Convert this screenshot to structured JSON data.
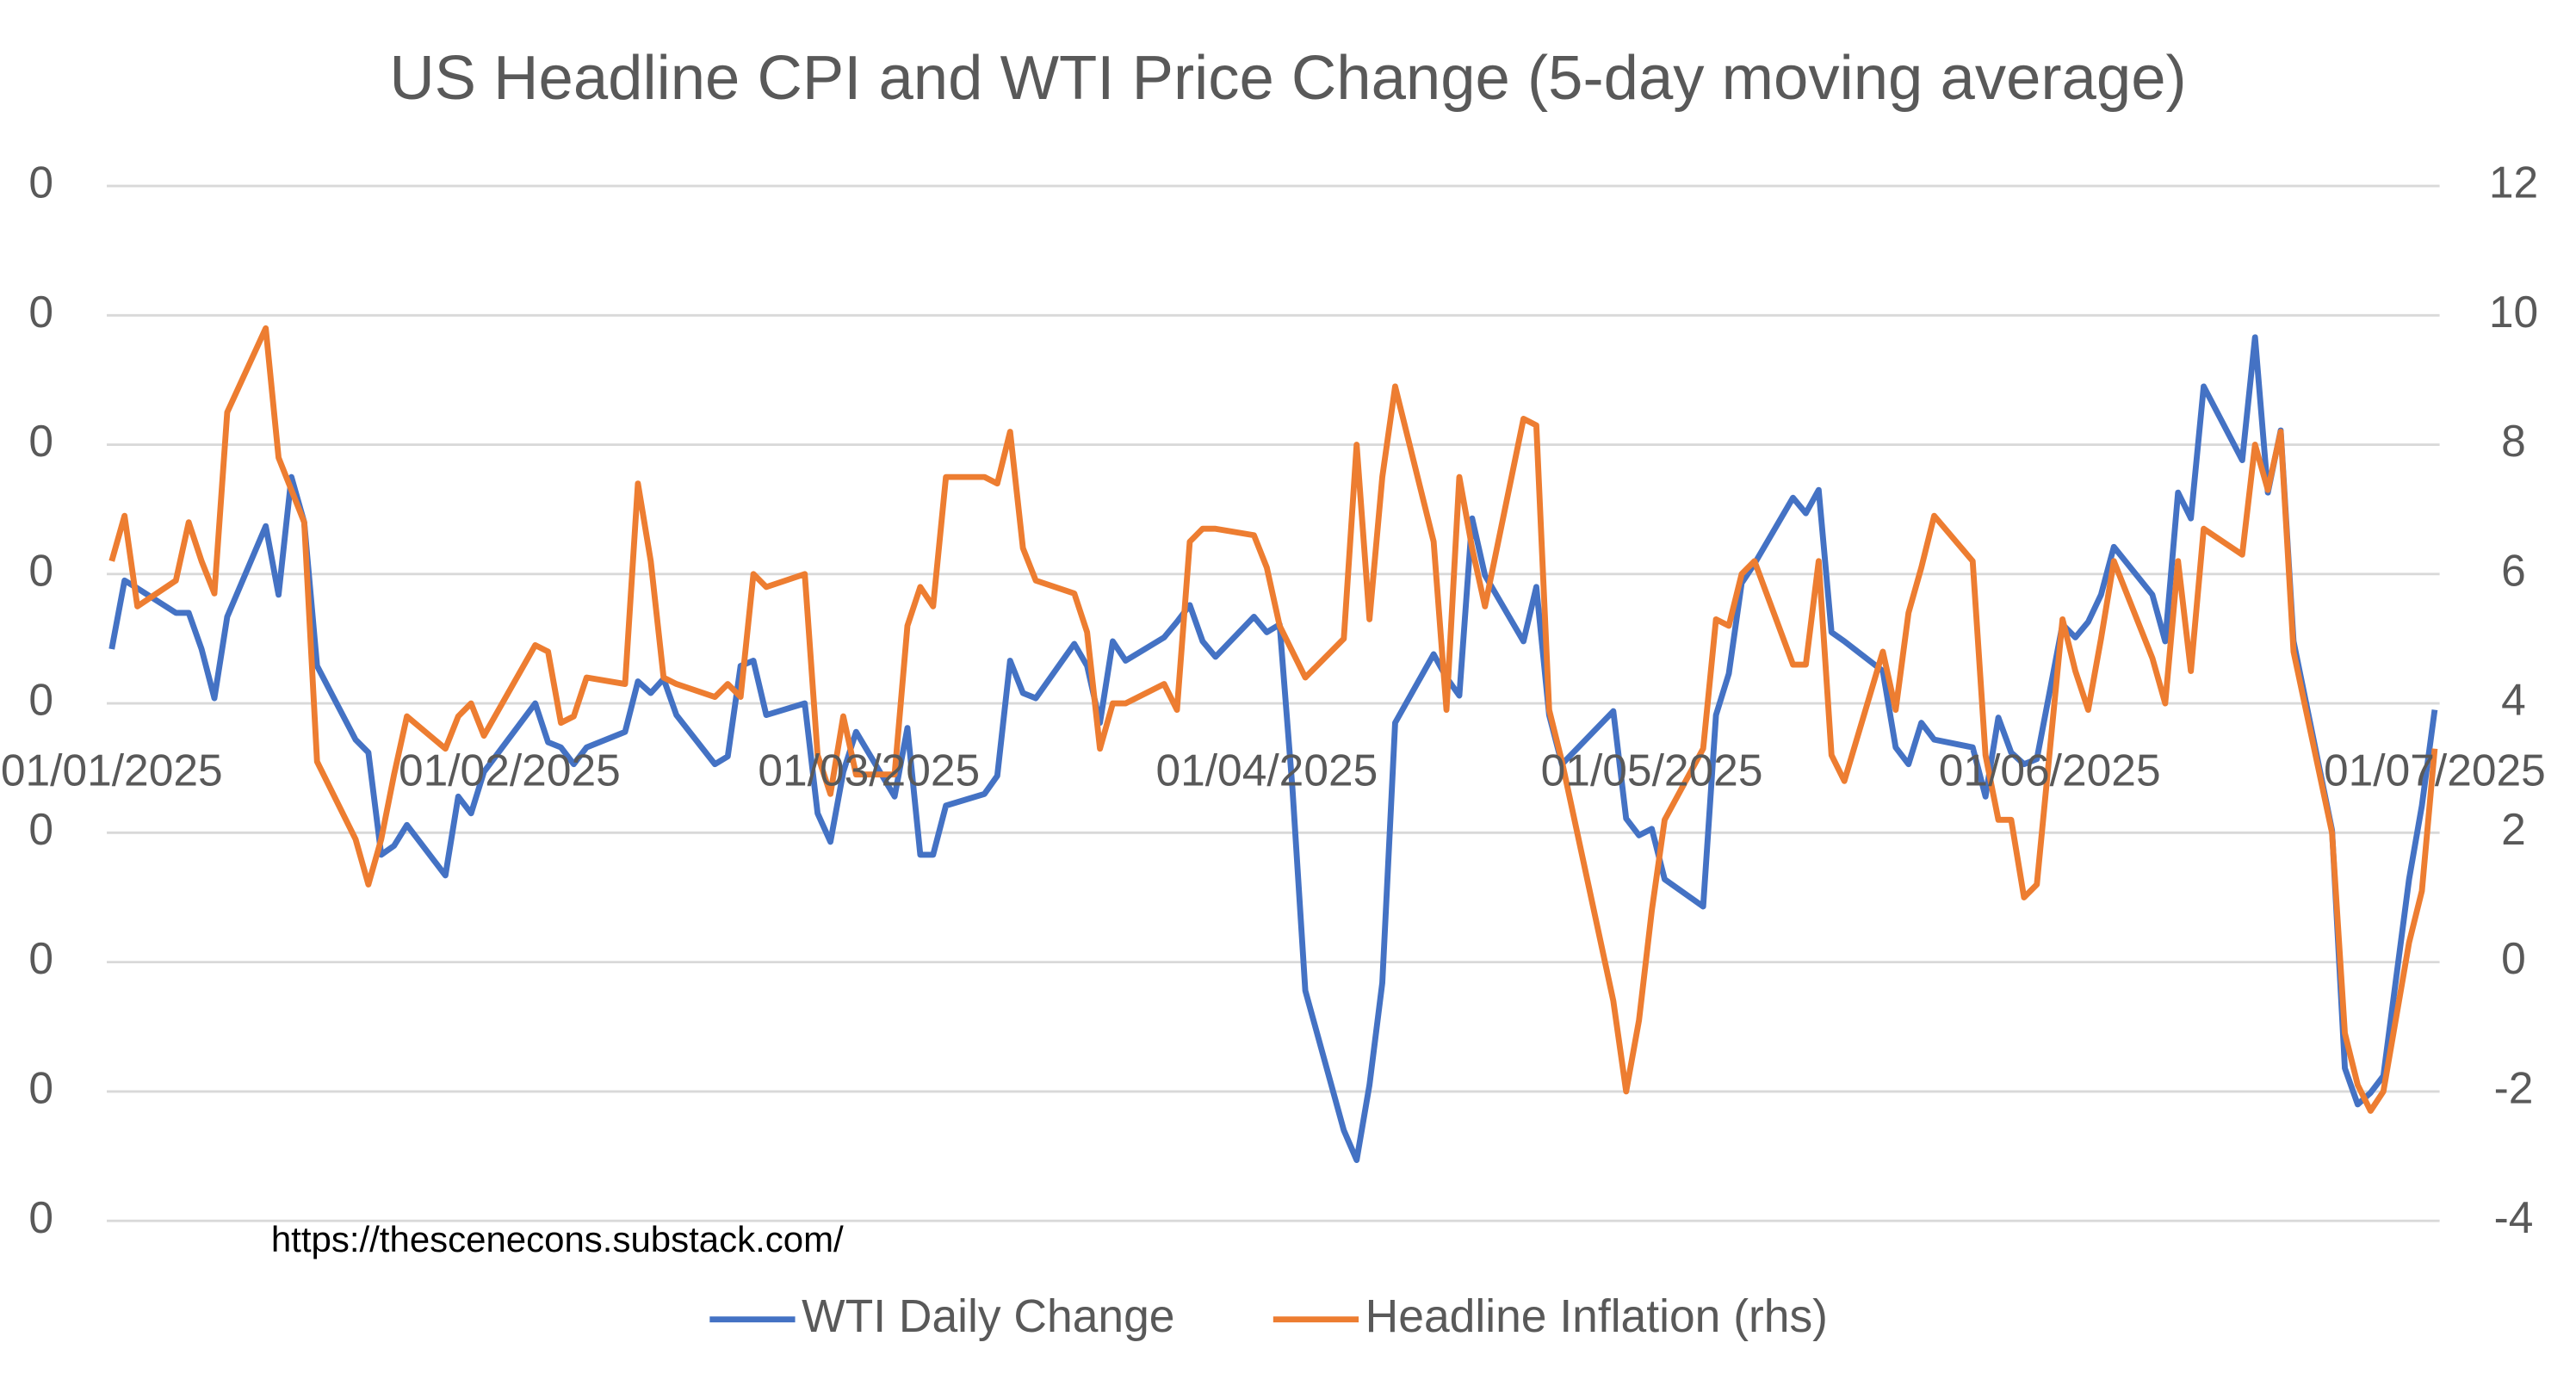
{
  "chart_data": {
    "type": "line",
    "title": "US Headline CPI and WTI Price Change (5-day moving average)",
    "annotation": "https://thescenecons.substack.com/",
    "x": [
      "2025-01-01",
      "2025-01-02",
      "2025-01-03",
      "2025-01-06",
      "2025-01-07",
      "2025-01-08",
      "2025-01-09",
      "2025-01-10",
      "2025-01-13",
      "2025-01-14",
      "2025-01-15",
      "2025-01-16",
      "2025-01-17",
      "2025-01-20",
      "2025-01-21",
      "2025-01-22",
      "2025-01-23",
      "2025-01-24",
      "2025-01-27",
      "2025-01-28",
      "2025-01-29",
      "2025-01-30",
      "2025-02-03",
      "2025-02-04",
      "2025-02-05",
      "2025-02-06",
      "2025-02-07",
      "2025-02-10",
      "2025-02-11",
      "2025-02-12",
      "2025-02-13",
      "2025-02-14",
      "2025-02-17",
      "2025-02-18",
      "2025-02-19",
      "2025-02-20",
      "2025-02-21",
      "2025-02-24",
      "2025-02-25",
      "2025-02-26",
      "2025-02-27",
      "2025-02-28",
      "2025-03-03",
      "2025-03-04",
      "2025-03-05",
      "2025-03-06",
      "2025-03-07",
      "2025-03-10",
      "2025-03-11",
      "2025-03-12",
      "2025-03-13",
      "2025-03-14",
      "2025-03-17",
      "2025-03-18",
      "2025-03-19",
      "2025-03-20",
      "2025-03-21",
      "2025-03-24",
      "2025-03-25",
      "2025-03-26",
      "2025-03-27",
      "2025-03-28",
      "2025-03-31",
      "2025-04-01",
      "2025-04-02",
      "2025-04-03",
      "2025-04-04",
      "2025-04-07",
      "2025-04-08",
      "2025-04-09",
      "2025-04-10",
      "2025-04-11",
      "2025-04-14",
      "2025-04-15",
      "2025-04-16",
      "2025-04-17",
      "2025-04-18",
      "2025-04-21",
      "2025-04-22",
      "2025-04-23",
      "2025-04-24",
      "2025-04-28",
      "2025-04-29",
      "2025-04-30",
      "2025-05-01",
      "2025-05-02",
      "2025-05-05",
      "2025-05-06",
      "2025-05-07",
      "2025-05-08",
      "2025-05-09",
      "2025-05-12",
      "2025-05-13",
      "2025-05-14",
      "2025-05-15",
      "2025-05-16",
      "2025-05-19",
      "2025-05-20",
      "2025-05-21",
      "2025-05-22",
      "2025-05-23",
      "2025-05-26",
      "2025-05-27",
      "2025-05-28",
      "2025-05-29",
      "2025-05-30",
      "2025-05-31",
      "2025-06-02",
      "2025-06-03",
      "2025-06-04",
      "2025-06-05",
      "2025-06-06",
      "2025-06-09",
      "2025-06-10",
      "2025-06-11",
      "2025-06-12",
      "2025-06-13",
      "2025-06-16",
      "2025-06-17",
      "2025-06-18",
      "2025-06-19",
      "2025-06-20",
      "2025-06-23",
      "2025-06-24",
      "2025-06-25",
      "2025-06-26",
      "2025-06-27",
      "2025-06-29",
      "2025-06-30",
      "2025-07-01"
    ],
    "xlim": [
      "2025-01-01",
      "2025-07-01"
    ],
    "xticks": [
      {
        "value": "2025-01-01",
        "label": "01/01/2025"
      },
      {
        "value": "2025-02-01",
        "label": "01/02/2025"
      },
      {
        "value": "2025-03-01",
        "label": "01/03/2025"
      },
      {
        "value": "2025-04-01",
        "label": "01/04/2025"
      },
      {
        "value": "2025-05-01",
        "label": "01/05/2025"
      },
      {
        "value": "2025-06-01",
        "label": "01/06/2025"
      },
      {
        "value": "2025-07-01",
        "label": "01/07/2025"
      }
    ],
    "ylim": [
      -0.04,
      0.04
    ],
    "yticks": [
      {
        "value": -0.04,
        "label": "0"
      },
      {
        "value": -0.03,
        "label": "0"
      },
      {
        "value": -0.02,
        "label": "0"
      },
      {
        "value": -0.01,
        "label": "0"
      },
      {
        "value": 0,
        "label": "0"
      },
      {
        "value": 0.01,
        "label": "0"
      },
      {
        "value": 0.02,
        "label": "0"
      },
      {
        "value": 0.03,
        "label": "0"
      },
      {
        "value": 0.04,
        "label": "0"
      }
    ],
    "y2lim": [
      -4,
      12
    ],
    "y2ticks": [
      -4,
      -2,
      0,
      2,
      4,
      6,
      8,
      10,
      12
    ],
    "grid": true,
    "legend": "bottom",
    "series": [
      {
        "name": "WTI Daily Change",
        "color": "#4472c4",
        "values": [
          0.0042,
          0.0095,
          0.0089,
          0.007,
          0.007,
          0.0042,
          0.0004,
          0.0067,
          0.0137,
          0.0084,
          0.0175,
          0.014,
          0.0029,
          -0.0028,
          -0.0038,
          -0.0117,
          -0.011,
          -0.0094,
          -0.0133,
          -0.0072,
          -0.0085,
          -0.0053,
          0,
          -0.003,
          -0.0034,
          -0.0047,
          -0.0034,
          -0.0022,
          0.0017,
          0.0008,
          0.0019,
          -0.0009,
          -0.0047,
          -0.0041,
          0.0029,
          0.0033,
          -0.0009,
          0,
          -0.0085,
          -0.0107,
          -0.0053,
          -0.0022,
          -0.0072,
          -0.0019,
          -0.0117,
          -0.0117,
          -0.0079,
          -0.007,
          -0.0056,
          0.0033,
          0.0008,
          0.0004,
          0.0046,
          0.0029,
          -0.0015,
          0.0048,
          0.0033,
          0.0051,
          0.0063,
          0.0076,
          0.0048,
          0.0036,
          0.0067,
          0.0055,
          0.0061,
          -0.0066,
          -0.0222,
          -0.033,
          -0.0353,
          -0.0295,
          -0.0216,
          -0.0015,
          0.0038,
          0.002,
          0.0006,
          0.0143,
          0.0099,
          0.0048,
          0.009,
          -0.0009,
          -0.0047,
          -0.0006,
          -0.0089,
          -0.0102,
          -0.0097,
          -0.0136,
          -0.0157,
          -0.0009,
          0.0023,
          0.0093,
          0.0108,
          0.0159,
          0.0147,
          0.0165,
          0.0055,
          0.0048,
          0.0025,
          -0.0034,
          -0.0047,
          -0.0015,
          -0.0028,
          -0.0034,
          -0.0072,
          -0.0011,
          -0.0038,
          -0.0047,
          -0.0043,
          0.0061,
          0.0051,
          0.0063,
          0.0084,
          0.0121,
          0.0084,
          0.0048,
          0.0163,
          0.0143,
          0.0245,
          0.0188,
          0.0283,
          0.0163,
          0.0211,
          0.0048,
          -0.0098,
          -0.0282,
          -0.031,
          -0.0301,
          -0.0288,
          -0.0136,
          -0.0079,
          -0.0005
        ]
      },
      {
        "name": "Headline Inflation (rhs)",
        "color": "#ed7d31",
        "axis": "y2",
        "values": [
          6.2,
          6.9,
          5.5,
          5.9,
          6.8,
          6.2,
          5.7,
          8.5,
          9.8,
          7.8,
          7.3,
          6.8,
          3.1,
          1.9,
          1.2,
          1.9,
          2.9,
          3.8,
          3.3,
          3.8,
          4.0,
          3.5,
          4.9,
          4.8,
          3.7,
          3.8,
          4.4,
          4.3,
          7.4,
          6.2,
          4.4,
          4.3,
          4.1,
          4.3,
          4.1,
          6.0,
          5.8,
          6.0,
          3.2,
          2.6,
          3.8,
          2.9,
          2.9,
          5.2,
          5.8,
          5.5,
          7.5,
          7.5,
          7.4,
          8.2,
          6.4,
          5.9,
          5.7,
          5.1,
          3.3,
          4.0,
          4.0,
          4.3,
          3.9,
          6.5,
          6.7,
          6.7,
          6.6,
          6.1,
          5.2,
          4.8,
          4.4,
          5.0,
          8.0,
          5.3,
          7.5,
          8.9,
          6.5,
          3.9,
          7.5,
          6.4,
          5.5,
          8.4,
          8.3,
          3.9,
          3.1,
          -0.6,
          -2.0,
          -0.9,
          0.8,
          2.2,
          3.3,
          5.3,
          5.2,
          6.0,
          6.2,
          4.6,
          4.6,
          6.2,
          3.2,
          2.8,
          4.8,
          3.9,
          5.4,
          6.1,
          6.9,
          6.2,
          3.2,
          2.2,
          2.2,
          1.0,
          1.2,
          5.3,
          4.5,
          3.9,
          5.0,
          6.2,
          4.7,
          4.0,
          6.2,
          4.5,
          6.7,
          6.3,
          8.0,
          7.3,
          8.2,
          4.8,
          2.0,
          -1.1,
          -1.9,
          -2.3,
          -2.0,
          0.3,
          1.1,
          3.3
        ]
      }
    ]
  }
}
